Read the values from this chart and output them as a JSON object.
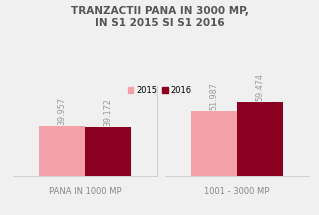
{
  "title": "TRANZACTII PANA IN 3000 MP,\nIN S1 2015 SI S1 2016",
  "categories": [
    "PANA IN 1000 MP",
    "1001 - 3000 MP"
  ],
  "values_2015": [
    39957,
    51987
  ],
  "values_2016": [
    39172,
    59474
  ],
  "labels_2015": [
    "39.957",
    "51.987"
  ],
  "labels_2016": [
    "39.172",
    "59.474"
  ],
  "color_2015": "#F4A0A8",
  "color_2016": "#8B0020",
  "legend_2015": "2015",
  "legend_2016": "2016",
  "background_color": "#f0f0f0",
  "title_fontsize": 7.5,
  "label_fontsize": 5.8,
  "tick_fontsize": 6.0,
  "legend_fontsize": 6.0,
  "bar_width": 0.32,
  "ylim": [
    0,
    72000
  ]
}
